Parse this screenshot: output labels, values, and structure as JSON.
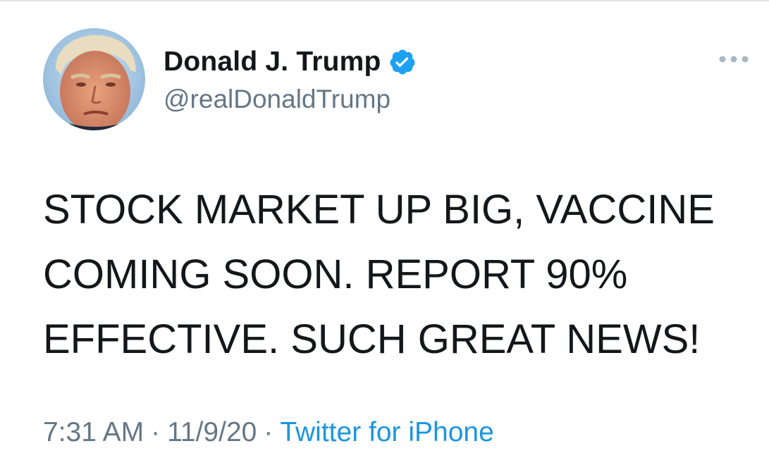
{
  "tweet": {
    "display_name": "Donald J. Trump",
    "handle": "@realDonaldTrump",
    "verified_icon": "verified-badge-icon",
    "more_icon": "more-options-icon",
    "text": "STOCK MARKET UP BIG, VACCINE\nCOMING SOON. REPORT 90%\nEFFECTIVE. SUCH GREAT NEWS!",
    "time": "7:31 AM",
    "date": "11/9/20",
    "separator": "·",
    "source": "Twitter for iPhone"
  },
  "colors": {
    "text": "#14171a",
    "secondary": "#657786",
    "link": "#1b95e0",
    "verified": "#1da1f2"
  }
}
